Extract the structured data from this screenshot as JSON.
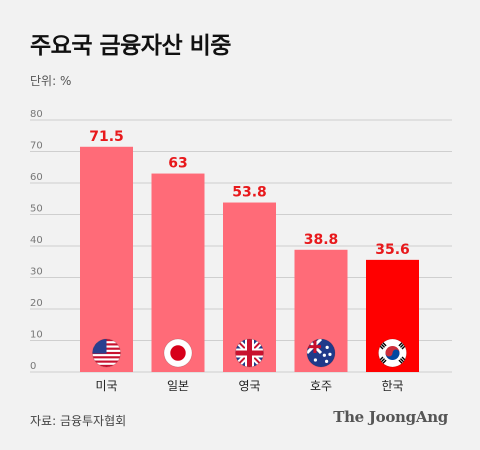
{
  "title": "주요국 금융자산 비중",
  "unit": "단위: %",
  "source": "자료: 금융투자협회",
  "brand": "The JoongAng",
  "colors": {
    "bar": "#ff6b78",
    "highlight": "#ff0000",
    "value_label": "#e8191c",
    "grid": "#cfcfcf",
    "background": "#f2f2f2"
  },
  "chart_data": {
    "type": "bar",
    "categories": [
      "미국",
      "일본",
      "영국",
      "호주",
      "한국"
    ],
    "values": [
      71.5,
      63,
      53.8,
      38.8,
      35.6
    ],
    "value_labels": [
      "71.5",
      "63",
      "53.8",
      "38.8",
      "35.6"
    ],
    "flags": [
      "us-flag-icon",
      "japan-flag-icon",
      "uk-flag-icon",
      "australia-flag-icon",
      "korea-flag-icon"
    ],
    "highlight_category": "한국",
    "ylim": [
      0,
      80
    ],
    "yticks": [
      "0",
      "10",
      "20",
      "30",
      "40",
      "50",
      "60",
      "70",
      "80"
    ],
    "grid": true
  }
}
